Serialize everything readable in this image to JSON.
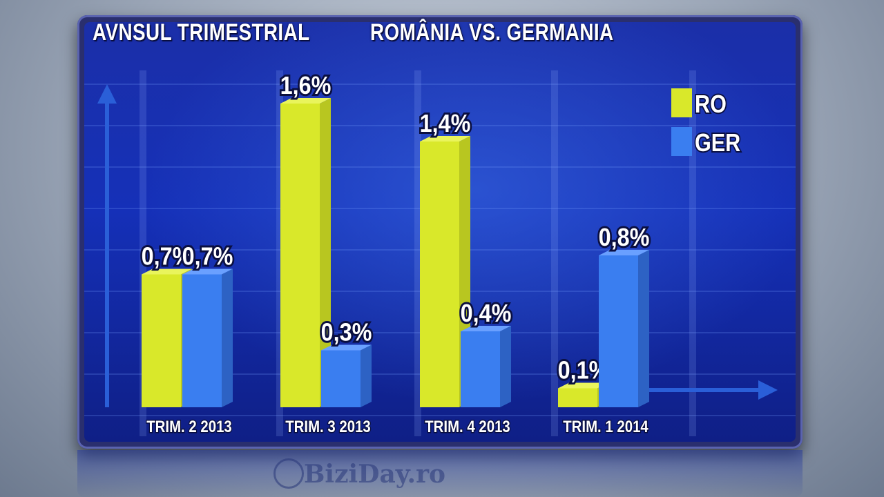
{
  "header": {
    "title_left": "AVNSUL TRIMESTRIAL",
    "title_right": "ROMÂNIA VS. GERMANIA"
  },
  "watermark": {
    "text": "BiziDay.ro"
  },
  "colors": {
    "ro": "#d9e82a",
    "ger": "#3a7ef0"
  },
  "chart_data": {
    "type": "bar",
    "title": "",
    "categories": [
      "TRIM. 2 2013",
      "TRIM. 3 2013",
      "TRIM. 4 2013",
      "TRIM. 1 2014"
    ],
    "series": [
      {
        "name": "RO",
        "values": [
          0.7,
          1.6,
          1.4,
          0.1
        ],
        "labels": [
          "0,7%",
          "1,6%",
          "1,4%",
          "0,1%"
        ]
      },
      {
        "name": "GER",
        "values": [
          0.7,
          0.3,
          0.4,
          0.8
        ],
        "labels": [
          "0,7%",
          "0,3%",
          "0,4%",
          "0,8%"
        ]
      }
    ],
    "legend_position": "top-right",
    "ylim": [
      0,
      1.6
    ]
  }
}
